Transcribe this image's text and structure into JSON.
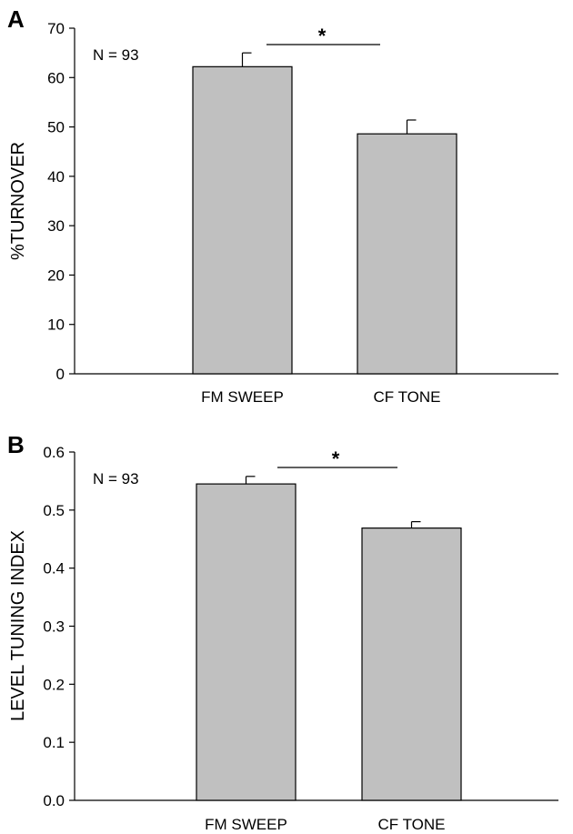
{
  "chart_data": [
    {
      "panel": "A",
      "type": "bar",
      "categories": [
        "FM SWEEP",
        "CF TONE"
      ],
      "values": [
        62.2,
        48.6
      ],
      "errors": [
        2.8,
        2.8
      ],
      "ylabel": "%TURNOVER",
      "ylim": [
        0,
        70
      ],
      "yticks": [
        "0",
        "10",
        "20",
        "30",
        "40",
        "50",
        "60",
        "70"
      ],
      "annotation": "N = 93",
      "significance": "*",
      "bar_color": "#c0c0c0",
      "grid": false
    },
    {
      "panel": "B",
      "type": "bar",
      "categories": [
        "FM SWEEP",
        "CF TONE"
      ],
      "values": [
        0.545,
        0.469
      ],
      "errors": [
        0.013,
        0.011
      ],
      "ylabel": "LEVEL TUNING INDEX",
      "ylim": [
        0,
        0.6
      ],
      "yticks": [
        "0.0",
        "0.1",
        "0.2",
        "0.3",
        "0.4",
        "0.5",
        "0.6"
      ],
      "annotation": "N = 93",
      "significance": "*",
      "bar_color": "#c0c0c0",
      "grid": false
    }
  ]
}
